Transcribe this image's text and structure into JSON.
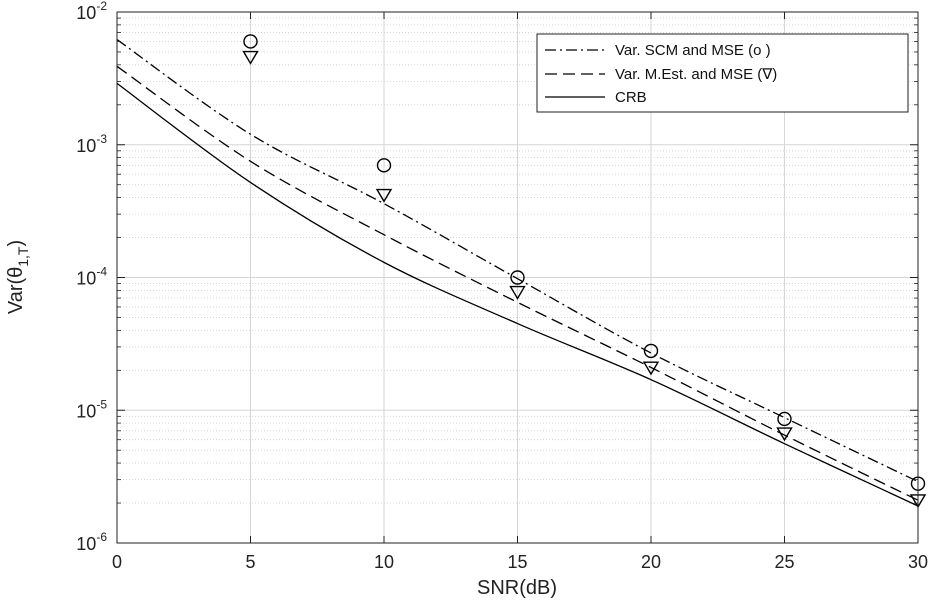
{
  "chart_data": {
    "type": "line",
    "xlabel": "SNR(dB)",
    "ylabel": "Var(θ",
    "ylabel_sub": "1,T",
    "ylabel_close": ")",
    "y_scale": "log",
    "xlim": [
      0,
      30
    ],
    "ylim": [
      1e-06,
      0.01
    ],
    "grid": true,
    "minor_grid": true,
    "legend_position": "top-right",
    "x_ticks": [
      0,
      5,
      10,
      15,
      20,
      25,
      30
    ],
    "x_tick_labels": [
      "0",
      "5",
      "10",
      "15",
      "20",
      "25",
      "30"
    ],
    "y_ticks": [
      1e-06,
      1e-05,
      0.0001,
      0.001,
      0.01
    ],
    "y_tick_labels": [
      {
        "base": "10",
        "exp": "-6"
      },
      {
        "base": "10",
        "exp": "-5"
      },
      {
        "base": "10",
        "exp": "-4"
      },
      {
        "base": "10",
        "exp": "-3"
      },
      {
        "base": "10",
        "exp": "-2"
      }
    ],
    "curve_x": [
      0,
      5,
      10,
      15,
      20,
      25,
      30
    ],
    "series": [
      {
        "name": "Var.  SCM and MSE (o )",
        "style": "dash-dot",
        "color": "#000000",
        "values": [
          0.0062,
          0.0012,
          0.00036,
          9.8e-05,
          2.7e-05,
          8.8e-06,
          2.9e-06
        ]
      },
      {
        "name": "Var.  M.Est. and MSE (∇)",
        "style": "dashed",
        "color": "#000000",
        "values": [
          0.0039,
          0.00075,
          0.00021,
          6.5e-05,
          2.1e-05,
          6.5e-06,
          2.1e-06
        ]
      },
      {
        "name": "CRB",
        "style": "solid",
        "color": "#000000",
        "values": [
          0.0029,
          0.00052,
          0.00013,
          4.5e-05,
          1.7e-05,
          5.6e-06,
          1.9e-06
        ]
      }
    ],
    "markers": [
      {
        "marker": "circle",
        "x": [
          5,
          10,
          15,
          20,
          25,
          30
        ],
        "values": [
          0.006,
          0.0007,
          0.0001,
          2.8e-05,
          8.6e-06,
          2.8e-06
        ]
      },
      {
        "marker": "triangle-down",
        "x": [
          5,
          10,
          15,
          20,
          25,
          30
        ],
        "values": [
          0.0046,
          0.00042,
          7.8e-05,
          2.1e-05,
          6.7e-06,
          2.1e-06
        ]
      }
    ]
  }
}
